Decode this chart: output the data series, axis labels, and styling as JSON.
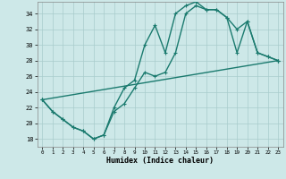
{
  "xlabel": "Humidex (Indice chaleur)",
  "xlim": [
    -0.5,
    23.5
  ],
  "ylim": [
    17,
    35.5
  ],
  "xticks": [
    0,
    1,
    2,
    3,
    4,
    5,
    6,
    7,
    8,
    9,
    10,
    11,
    12,
    13,
    14,
    15,
    16,
    17,
    18,
    19,
    20,
    21,
    22,
    23
  ],
  "yticks": [
    18,
    20,
    22,
    24,
    26,
    28,
    30,
    32,
    34
  ],
  "bg_color": "#cde8e8",
  "grid_color": "#a8cccc",
  "line_color": "#1a7a6e",
  "line1_x": [
    0,
    1,
    2,
    3,
    4,
    5,
    6,
    7,
    8,
    9,
    10,
    11,
    12,
    13,
    14,
    15,
    16,
    17,
    18,
    19,
    20,
    21,
    22,
    23
  ],
  "line1_y": [
    23.0,
    21.5,
    20.5,
    19.5,
    19.0,
    18.0,
    18.5,
    22.0,
    24.5,
    25.5,
    30.0,
    32.5,
    29.0,
    34.0,
    35.0,
    35.5,
    34.5,
    34.5,
    33.5,
    29.0,
    33.0,
    29.0,
    28.5,
    28.0
  ],
  "line2_x": [
    0,
    1,
    2,
    3,
    4,
    5,
    6,
    7,
    8,
    9,
    10,
    11,
    12,
    13,
    14,
    15,
    16,
    17,
    18,
    19,
    20,
    21,
    22,
    23
  ],
  "line2_y": [
    23.0,
    21.5,
    20.5,
    19.5,
    19.0,
    18.0,
    18.5,
    21.5,
    22.5,
    24.5,
    26.5,
    26.0,
    26.5,
    29.0,
    34.0,
    35.0,
    34.5,
    34.5,
    33.5,
    32.0,
    33.0,
    29.0,
    28.5,
    28.0
  ],
  "line3_x": [
    0,
    23
  ],
  "line3_y": [
    23.0,
    28.0
  ],
  "marker": "+",
  "markersize": 3.5,
  "linewidth": 1.0
}
